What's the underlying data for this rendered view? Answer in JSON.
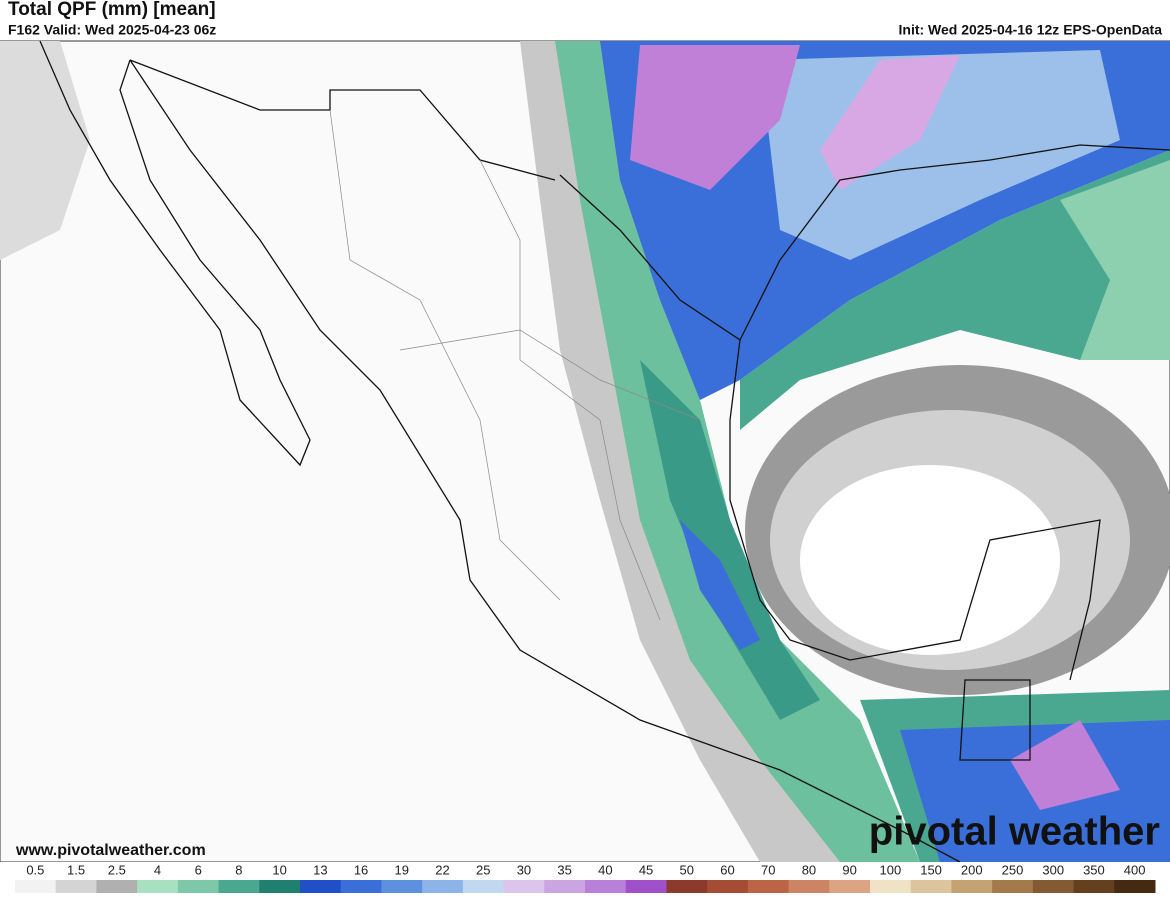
{
  "header": {
    "title": "Total QPF (mm) [mean]",
    "valid": "F162 Valid: Wed 2025-04-23 06z",
    "init": "Init: Wed 2025-04-16 12z EPS-OpenData"
  },
  "footer": {
    "website": "www.pivotalweather.com",
    "logo": "pivotal weather"
  },
  "colorbar": {
    "labels": [
      "0.5",
      "1.5",
      "2.5",
      "4",
      "6",
      "8",
      "10",
      "13",
      "16",
      "19",
      "22",
      "25",
      "30",
      "35",
      "40",
      "45",
      "50",
      "60",
      "70",
      "80",
      "90",
      "100",
      "150",
      "200",
      "250",
      "300",
      "350",
      "400"
    ],
    "colors": [
      "#f2f2f2",
      "#d4d4d4",
      "#b0b0b0",
      "#a8e0c0",
      "#7cc8a8",
      "#4aa890",
      "#208070",
      "#2050c8",
      "#3a6ed8",
      "#5e90e0",
      "#8cb4e8",
      "#c0d8f0",
      "#dcc4ec",
      "#cba4e2",
      "#b880d8",
      "#a050c8",
      "#8c3a2c",
      "#a44c34",
      "#bc6446",
      "#cc8464",
      "#dca484",
      "#f0e2c4",
      "#dcc49c",
      "#c4a272",
      "#a47a4a",
      "#845a32",
      "#64401e",
      "#442a10"
    ]
  }
}
